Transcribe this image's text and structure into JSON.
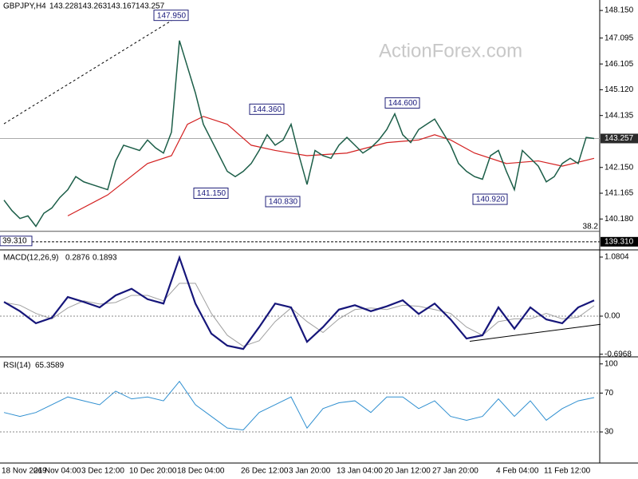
{
  "chart_data": [
    {
      "type": "line",
      "title": "GBPJPY,H4",
      "ohlc": [
        143.228,
        143.263,
        143.167,
        143.257
      ],
      "watermark": "ActionForex.com",
      "color": "#1c5e48",
      "values": [
        140.9,
        140.5,
        140.2,
        140.3,
        139.9,
        140.4,
        140.6,
        141.0,
        141.3,
        141.8,
        141.6,
        141.5,
        141.4,
        141.3,
        142.4,
        143.0,
        142.9,
        142.8,
        143.2,
        142.9,
        142.7,
        143.5,
        147.0,
        146.0,
        145.0,
        143.8,
        143.2,
        142.6,
        142.0,
        141.8,
        142.0,
        142.3,
        142.8,
        143.4,
        143.0,
        143.2,
        143.8,
        142.6,
        141.5,
        142.8,
        142.6,
        142.5,
        143.0,
        143.3,
        143.0,
        142.7,
        142.9,
        143.2,
        143.6,
        144.2,
        143.4,
        143.1,
        143.6,
        143.8,
        144.0,
        143.5,
        143.0,
        142.3,
        142.0,
        141.8,
        141.7,
        142.6,
        142.8,
        142.0,
        141.3,
        142.8,
        142.5,
        142.2,
        141.6,
        141.8,
        142.3,
        142.5,
        142.3,
        143.3,
        143.257
      ],
      "ma": {
        "color": "#d32020",
        "x": [
          8,
          13,
          18,
          21,
          23,
          25,
          28,
          31,
          34,
          38,
          43,
          48,
          52,
          54,
          56,
          59,
          63,
          67,
          70,
          74
        ],
        "values": [
          140.3,
          141.1,
          142.3,
          142.6,
          143.8,
          144.1,
          143.8,
          143.0,
          142.8,
          142.6,
          142.7,
          143.1,
          143.2,
          143.4,
          143.2,
          142.7,
          142.3,
          142.4,
          142.2,
          142.5
        ]
      },
      "annotations": [
        {
          "label": "147.950",
          "value": 147.95,
          "x": 21
        },
        {
          "label": "144.360",
          "value": 144.36,
          "x": 33
        },
        {
          "label": "141.150",
          "value": 141.15,
          "x": 26
        },
        {
          "label": "140.830",
          "value": 140.83,
          "x": 35
        },
        {
          "label": "144.600",
          "value": 144.6,
          "x": 50
        },
        {
          "label": "140.920",
          "value": 140.92,
          "x": 61
        }
      ],
      "current": {
        "value": 143.257,
        "label": "143.257"
      },
      "support": {
        "value": 139.31,
        "label": "139.310"
      },
      "clipped_label": "39.310",
      "fib": {
        "level": 38.2,
        "price": 139.71
      },
      "trendline": {
        "from": [
          0,
          143.82
        ],
        "to": [
          22,
          147.95
        ]
      },
      "ylim": [
        139.03,
        148.55
      ],
      "yticks": [
        {
          "value": 148.15,
          "label": "148.150"
        },
        {
          "value": 147.095,
          "label": "147.095"
        },
        {
          "value": 146.105,
          "label": "146.105"
        },
        {
          "value": 145.12,
          "label": "145.120"
        },
        {
          "value": 144.135,
          "label": "144.135"
        },
        {
          "value": 142.15,
          "label": "142.150"
        },
        {
          "value": 141.165,
          "label": "141.165"
        },
        {
          "value": 140.18,
          "label": "140.180"
        }
      ]
    },
    {
      "type": "line",
      "title": "MACD(12,26,9)",
      "readout": [
        0.2876,
        0.1893
      ],
      "series": [
        {
          "color": "#16167a",
          "values": [
            0.26,
            0.09,
            -0.13,
            -0.03,
            0.35,
            0.26,
            0.16,
            0.38,
            0.5,
            0.31,
            0.23,
            1.07,
            0.23,
            -0.32,
            -0.54,
            -0.6,
            -0.2,
            0.23,
            0.16,
            -0.47,
            -0.2,
            0.12,
            0.2,
            0.09,
            0.18,
            0.29,
            0.04,
            0.23,
            -0.06,
            -0.41,
            -0.35,
            0.16,
            -0.23,
            0.16,
            -0.06,
            -0.13,
            0.16,
            0.2876
          ]
        },
        {
          "color": "#a0a0a0",
          "values": [
            0.25,
            0.2,
            0.05,
            -0.05,
            0.15,
            0.28,
            0.22,
            0.25,
            0.38,
            0.38,
            0.28,
            0.6,
            0.6,
            0.05,
            -0.35,
            -0.55,
            -0.45,
            -0.1,
            0.15,
            -0.1,
            -0.3,
            -0.05,
            0.12,
            0.15,
            0.12,
            0.2,
            0.18,
            0.12,
            0.05,
            -0.2,
            -0.35,
            -0.1,
            -0.05,
            -0.05,
            0.05,
            -0.05,
            -0.02,
            0.1893
          ]
        }
      ],
      "trendline": {
        "from": [
          29.2,
          -0.46
        ],
        "to": [
          37.4,
          -0.15
        ]
      },
      "levels": [
        0
      ],
      "ylim": [
        -0.73,
        1.197
      ],
      "yticks": [
        1.0804,
        {
          "value": 0,
          "label": "0.00"
        },
        -0.6968
      ]
    },
    {
      "type": "line",
      "title": "RSI(14)",
      "readout": [
        65.3589
      ],
      "color": "#2f8fd0",
      "values": [
        50,
        46,
        50,
        58,
        66,
        62,
        58,
        72,
        64,
        66,
        62,
        82,
        58,
        46,
        34,
        32,
        50,
        58,
        66,
        34,
        54,
        60,
        62,
        50,
        66,
        66,
        54,
        62,
        46,
        42,
        46,
        64,
        46,
        62,
        42,
        54,
        62,
        65.3589
      ],
      "categories": [
        "18 Nov 2019",
        null,
        "26 Nov 04:00",
        null,
        null,
        "3 Dec 12:00",
        null,
        null,
        "10 Dec 20:00",
        null,
        null,
        "18 Dec 04:00",
        null,
        null,
        null,
        "26 Dec 12:00",
        null,
        null,
        "3 Jan 20:00",
        null,
        null,
        "13 Jan 04:00",
        null,
        null,
        "20 Jan 12:00",
        null,
        null,
        "27 Jan 20:00",
        null,
        null,
        null,
        "4 Feb 04:00",
        null,
        null,
        "11 Feb 12:00",
        null,
        null,
        null
      ],
      "levels": [
        70,
        30
      ],
      "ylim": [
        -2,
        105.6
      ],
      "yticks": [
        100,
        70,
        30
      ]
    }
  ]
}
